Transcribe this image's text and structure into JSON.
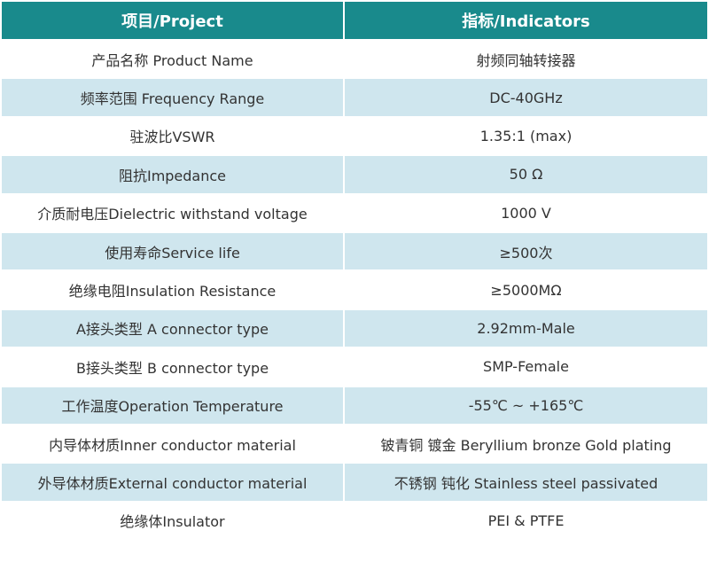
{
  "header": {
    "cells": [
      "项目/Project",
      "指标/Indicators"
    ]
  },
  "table": {
    "rows": [
      [
        "产品名称 Product Name",
        "射频同轴转接器"
      ],
      [
        "频率范围 Frequency Range",
        "DC-40GHz"
      ],
      [
        "驻波比VSWR",
        "1.35:1 (max)"
      ],
      [
        "阻抗Impedance",
        "50 Ω"
      ],
      [
        "介质耐电压Dielectric withstand voltage",
        "1000 V"
      ],
      [
        "使用寿命Service life",
        "≥500次"
      ],
      [
        "绝缘电阻Insulation Resistance",
        "≥5000MΩ"
      ],
      [
        "A接头类型 A connector type",
        "2.92mm-Male"
      ],
      [
        "B接头类型 B connector type",
        "SMP-Female"
      ],
      [
        "工作温度Operation Temperature",
        "-55℃ ~ +165℃"
      ],
      [
        "内导体材质Inner conductor material",
        "铍青铜 镀金 Beryllium bronze Gold plating"
      ],
      [
        "外导体材质External conductor material",
        "不锈钢 钝化 Stainless steel passivated"
      ],
      [
        "绝缘体Insulator",
        "PEI & PTFE"
      ]
    ]
  }
}
